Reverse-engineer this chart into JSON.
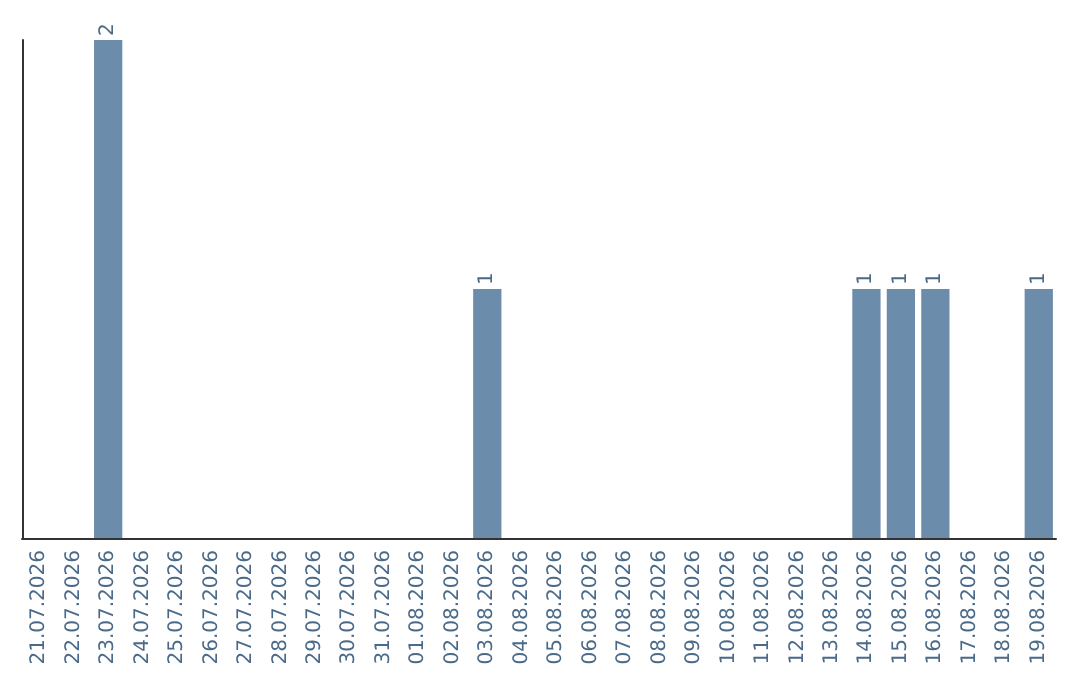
{
  "chart_data": {
    "type": "bar",
    "categories": [
      "21.07.2026",
      "22.07.2026",
      "23.07.2026",
      "24.07.2026",
      "25.07.2026",
      "26.07.2026",
      "27.07.2026",
      "28.07.2026",
      "29.07.2026",
      "30.07.2026",
      "31.07.2026",
      "01.08.2026",
      "02.08.2026",
      "03.08.2026",
      "04.08.2026",
      "05.08.2026",
      "06.08.2026",
      "07.08.2026",
      "08.08.2026",
      "09.08.2026",
      "10.08.2026",
      "11.08.2026",
      "12.08.2026",
      "13.08.2026",
      "14.08.2026",
      "15.08.2026",
      "16.08.2026",
      "17.08.2026",
      "18.08.2026",
      "19.08.2026"
    ],
    "values": [
      0,
      0,
      2,
      0,
      0,
      0,
      0,
      0,
      0,
      0,
      0,
      0,
      0,
      1,
      0,
      0,
      0,
      0,
      0,
      0,
      0,
      0,
      0,
      0,
      1,
      1,
      1,
      0,
      0,
      1
    ],
    "value_labels": [
      null,
      null,
      "2",
      null,
      null,
      null,
      null,
      null,
      null,
      null,
      null,
      null,
      null,
      "1",
      null,
      null,
      null,
      null,
      null,
      null,
      null,
      null,
      null,
      null,
      "1",
      "1",
      "1",
      null,
      null,
      "1"
    ],
    "color": "#6b8caa",
    "ylim": [
      0,
      2
    ],
    "tick_labels": "x"
  }
}
